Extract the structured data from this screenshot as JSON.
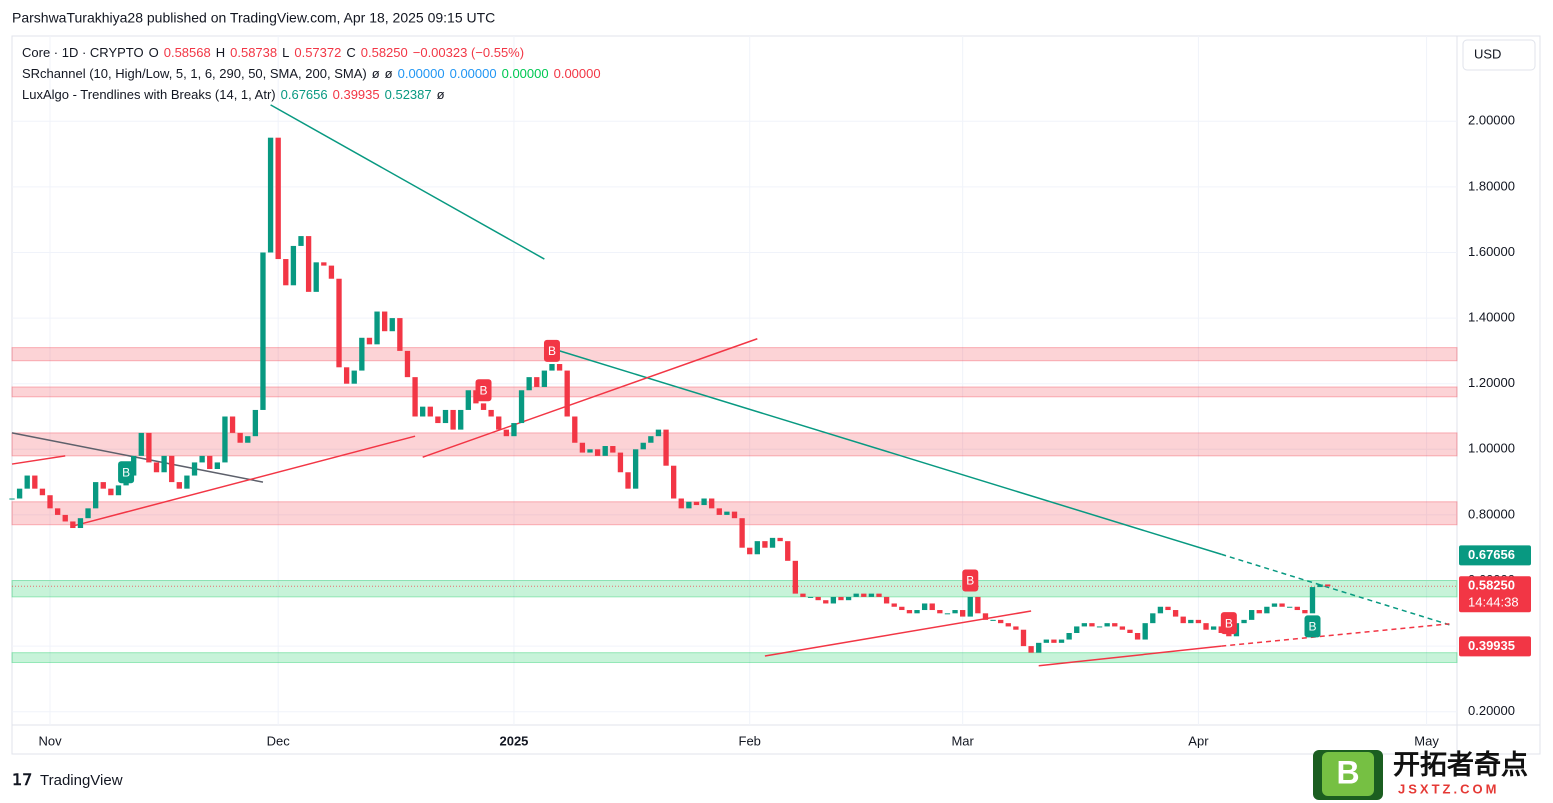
{
  "page": {
    "published": "ParshwaTurakhiya28 published on TradingView.com, Apr 18, 2025 09:15 UTC",
    "currency": "USD",
    "brand": "TradingView",
    "watermark": "开拓者奇点",
    "watermark_site": "JSXTZ.COM",
    "watermark_logo": "B"
  },
  "legend": [
    [
      {
        "text": "Core · 1D · CRYPTO",
        "color": "#131722"
      },
      {
        "text": "O",
        "color": "#131722"
      },
      {
        "text": "0.58568",
        "color": "#f23645"
      },
      {
        "text": "H",
        "color": "#131722"
      },
      {
        "text": "0.58738",
        "color": "#f23645"
      },
      {
        "text": "L",
        "color": "#131722"
      },
      {
        "text": "0.57372",
        "color": "#f23645"
      },
      {
        "text": "C",
        "color": "#131722"
      },
      {
        "text": "0.58250",
        "color": "#f23645"
      },
      {
        "text": "−0.00323 (−0.55%)",
        "color": "#f23645"
      }
    ],
    [
      {
        "text": "SRchannel (10, High/Low, 5, 1, 6, 290, 50, SMA, 200, SMA)",
        "color": "#131722"
      },
      {
        "text": "ø",
        "color": "#131722"
      },
      {
        "text": "ø",
        "color": "#131722"
      },
      {
        "text": "0.00000",
        "color": "#2196f3"
      },
      {
        "text": "0.00000",
        "color": "#2196f3"
      },
      {
        "text": "0.00000",
        "color": "#00c853"
      },
      {
        "text": "0.00000",
        "color": "#f23645"
      }
    ],
    [
      {
        "text": "LuxAlgo - Trendlines with Breaks (14, 1, Atr)",
        "color": "#131722"
      },
      {
        "text": "0.67656",
        "color": "#089981"
      },
      {
        "text": "0.39935",
        "color": "#f23645"
      },
      {
        "text": "0.52387",
        "color": "#089981"
      },
      {
        "text": "ø",
        "color": "#131722"
      }
    ]
  ],
  "chart_data": {
    "type": "candlestick",
    "close": [
      0.85,
      0.88,
      0.92,
      0.88,
      0.86,
      0.82,
      0.8,
      0.78,
      0.76,
      0.79,
      0.82,
      0.9,
      0.88,
      0.86,
      0.89,
      0.92,
      0.98,
      1.05,
      0.96,
      0.93,
      0.98,
      0.9,
      0.88,
      0.92,
      0.96,
      0.98,
      0.94,
      0.96,
      1.1,
      1.05,
      1.02,
      1.04,
      1.12,
      1.6,
      1.95,
      1.58,
      1.5,
      1.62,
      1.65,
      1.48,
      1.57,
      1.56,
      1.52,
      1.25,
      1.2,
      1.24,
      1.34,
      1.32,
      1.42,
      1.36,
      1.4,
      1.3,
      1.22,
      1.1,
      1.13,
      1.1,
      1.08,
      1.12,
      1.06,
      1.12,
      1.18,
      1.14,
      1.12,
      1.1,
      1.06,
      1.04,
      1.08,
      1.18,
      1.22,
      1.19,
      1.24,
      1.26,
      1.24,
      1.1,
      1.02,
      0.99,
      1.0,
      0.98,
      1.01,
      0.99,
      0.93,
      0.88,
      1.0,
      1.02,
      1.04,
      1.06,
      0.95,
      0.85,
      0.82,
      0.84,
      0.83,
      0.85,
      0.82,
      0.8,
      0.81,
      0.79,
      0.7,
      0.68,
      0.72,
      0.7,
      0.73,
      0.72,
      0.66,
      0.56,
      0.55,
      0.55,
      0.54,
      0.53,
      0.55,
      0.54,
      0.55,
      0.56,
      0.55,
      0.56,
      0.55,
      0.53,
      0.52,
      0.51,
      0.5,
      0.51,
      0.53,
      0.51,
      0.5,
      0.5,
      0.51,
      0.49,
      0.55,
      0.5,
      0.48,
      0.48,
      0.47,
      0.46,
      0.45,
      0.4,
      0.38,
      0.41,
      0.42,
      0.41,
      0.42,
      0.44,
      0.46,
      0.47,
      0.46,
      0.46,
      0.47,
      0.46,
      0.45,
      0.44,
      0.42,
      0.47,
      0.5,
      0.52,
      0.51,
      0.49,
      0.47,
      0.48,
      0.47,
      0.45,
      0.46,
      0.44,
      0.43,
      0.47,
      0.48,
      0.51,
      0.5,
      0.52,
      0.53,
      0.52,
      0.52,
      0.51,
      0.5,
      0.58,
      0.588,
      0.5825
    ],
    "color_up": "#089981",
    "color_down": "#f23645",
    "xlim": [
      0,
      190
    ],
    "xticks": [
      {
        "value": 5,
        "label": "Nov"
      },
      {
        "value": 35,
        "label": "Dec"
      },
      {
        "value": 66,
        "label": "2025"
      },
      {
        "value": 97,
        "label": "Feb"
      },
      {
        "value": 125,
        "label": "Mar"
      },
      {
        "value": 156,
        "label": "Apr"
      },
      {
        "value": 186,
        "label": "May"
      }
    ],
    "ylim": [
      0.19,
      2.26
    ],
    "yticks": [
      {
        "value": 0.2,
        "label": "0.20000"
      },
      {
        "value": 0.4,
        "label": "0.40000"
      },
      {
        "value": 0.6,
        "label": "0.60000"
      },
      {
        "value": 0.8,
        "label": "0.80000"
      },
      {
        "value": 1.0,
        "label": "1.00000"
      },
      {
        "value": 1.2,
        "label": "1.20000"
      },
      {
        "value": 1.4,
        "label": "1.40000"
      },
      {
        "value": 1.6,
        "label": "1.60000"
      },
      {
        "value": 1.8,
        "label": "1.80000"
      },
      {
        "value": 2.0,
        "label": "2.00000"
      }
    ],
    "grid": true,
    "zones": [
      {
        "low": 1.27,
        "high": 1.31,
        "color": "#f23645"
      },
      {
        "low": 1.16,
        "high": 1.19,
        "color": "#f23645"
      },
      {
        "low": 0.98,
        "high": 1.05,
        "color": "#f23645"
      },
      {
        "low": 0.77,
        "high": 0.84,
        "color": "#f23645"
      },
      {
        "low": 0.55,
        "high": 0.6,
        "color": "#00c853"
      },
      {
        "low": 0.35,
        "high": 0.38,
        "color": "#00c853"
      }
    ],
    "trendlines": [
      {
        "x": [
          34,
          70
        ],
        "y": [
          2.05,
          1.58
        ],
        "color": "#089981",
        "style": "solid"
      },
      {
        "x": [
          72,
          159
        ],
        "y": [
          1.3,
          0.68
        ],
        "color": "#089981",
        "style": "solid"
      },
      {
        "x": [
          159,
          189
        ],
        "y": [
          0.68,
          0.465
        ],
        "color": "#089981",
        "style": "dashed"
      },
      {
        "x": [
          0,
          33
        ],
        "y": [
          1.05,
          0.9
        ],
        "color": "#5d606b",
        "style": "solid"
      },
      {
        "x": [
          0,
          7
        ],
        "y": [
          0.955,
          0.98
        ],
        "color": "#f23645",
        "style": "solid"
      },
      {
        "x": [
          8,
          53
        ],
        "y": [
          0.766,
          1.04
        ],
        "color": "#f23645",
        "style": "solid"
      },
      {
        "x": [
          54,
          98
        ],
        "y": [
          0.976,
          1.337
        ],
        "color": "#f23645",
        "style": "solid"
      },
      {
        "x": [
          99,
          134
        ],
        "y": [
          0.37,
          0.507
        ],
        "color": "#f23645",
        "style": "solid"
      },
      {
        "x": [
          135,
          159
        ],
        "y": [
          0.34,
          0.4
        ],
        "color": "#f23645",
        "style": "solid"
      },
      {
        "x": [
          159,
          189
        ],
        "y": [
          0.4,
          0.468
        ],
        "color": "#f23645",
        "style": "dashed"
      }
    ],
    "signals": [
      {
        "label": "B",
        "x": 15,
        "y": 0.93,
        "color": "#089981"
      },
      {
        "label": "B",
        "x": 62,
        "y": 1.18,
        "color": "#f23645"
      },
      {
        "label": "B",
        "x": 71,
        "y": 1.3,
        "color": "#f23645"
      },
      {
        "label": "B",
        "x": 126,
        "y": 0.6,
        "color": "#f23645"
      },
      {
        "label": "B",
        "x": 160,
        "y": 0.47,
        "color": "#f23645"
      },
      {
        "label": "B",
        "x": 171,
        "y": 0.46,
        "color": "#089981"
      }
    ],
    "price_tags": [
      {
        "value": 0.67656,
        "label": "0.67656",
        "color": "#089981"
      },
      {
        "value": 0.5825,
        "label": "0.58250",
        "sub": "14:44:38",
        "color": "#f23645"
      },
      {
        "value": 0.39935,
        "label": "0.39935",
        "color": "#f23645"
      }
    ]
  }
}
